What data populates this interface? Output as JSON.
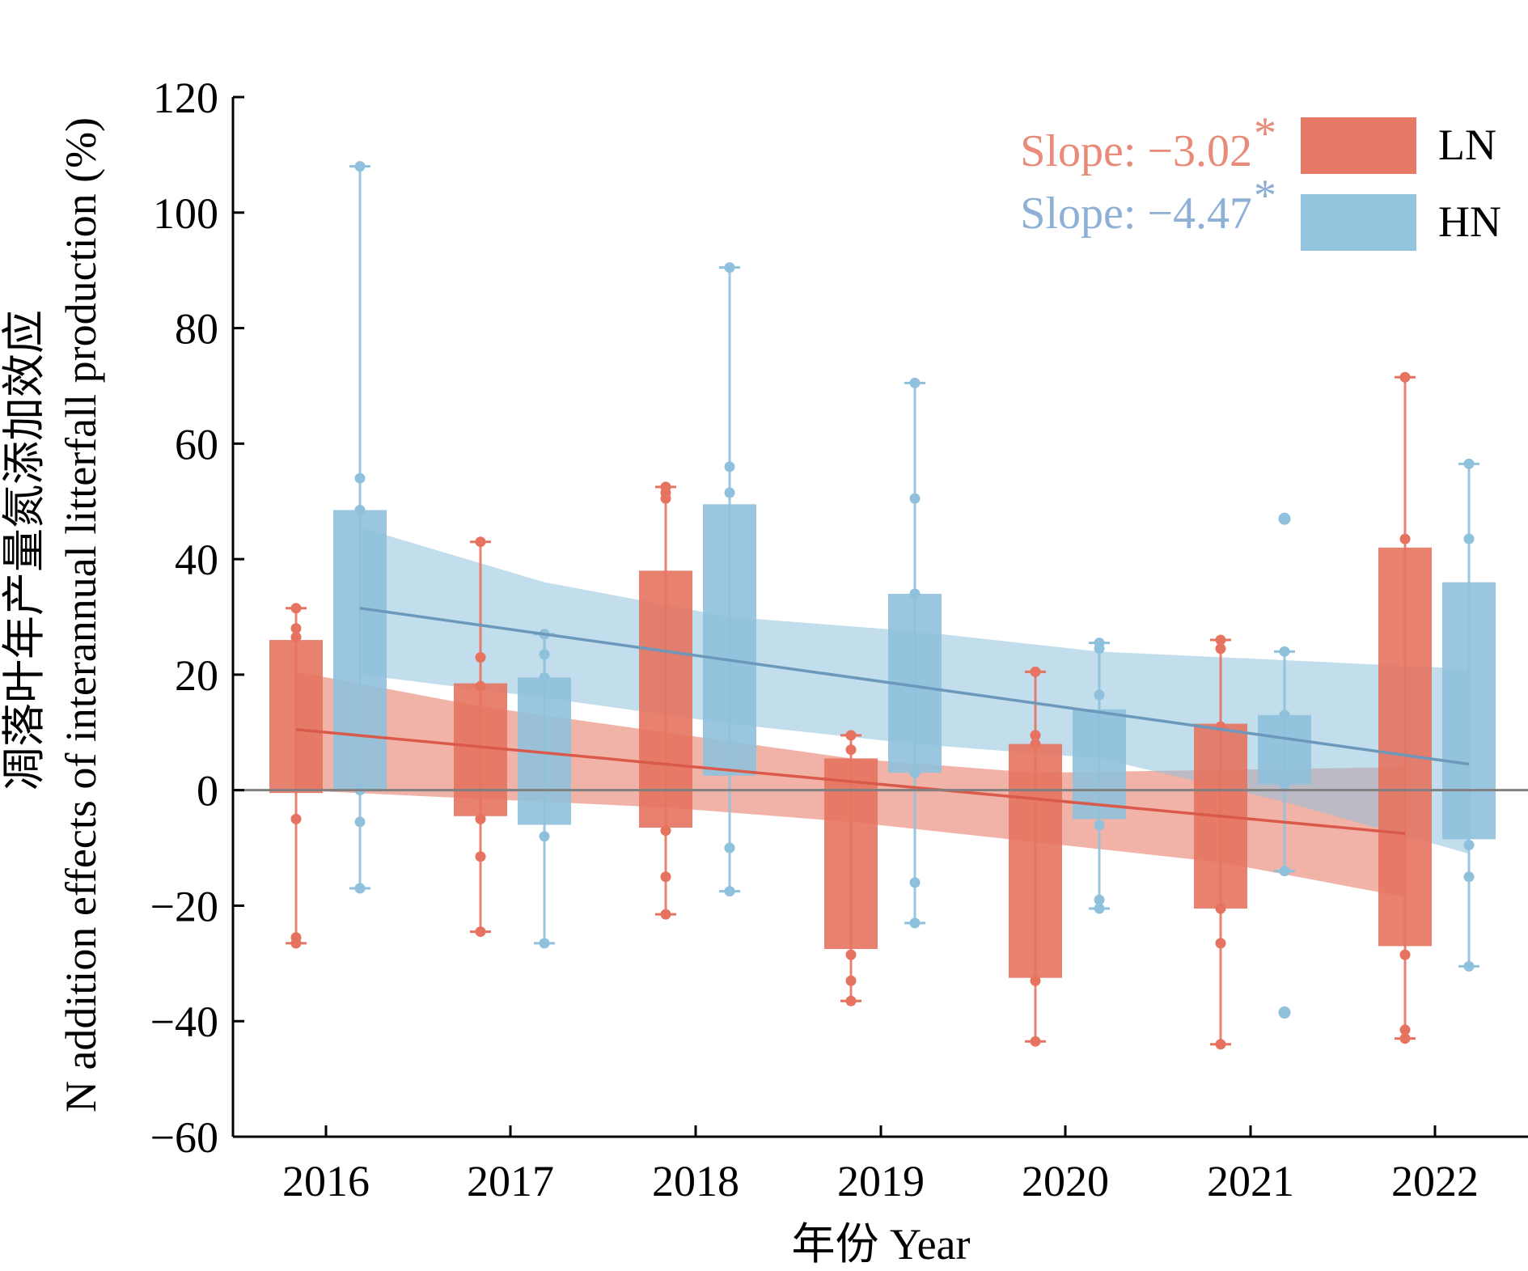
{
  "colors": {
    "LN": "#e5735f",
    "HN": "#8fc1dc",
    "LN_line": "#d9594a",
    "HN_line": "#6b98bb",
    "LN_text": "#e88c79",
    "HN_text": "#8fb0d6",
    "zero_line": "#808080"
  },
  "chart_data": {
    "type": "box",
    "xlabel": "年份 Year",
    "ylabel_cn": "凋落叶年产量氮添加效应",
    "ylabel_en": "N addition effects of interannual litterfall production (%)",
    "ylim": [
      -60,
      120
    ],
    "yticks": [
      -60,
      -40,
      -20,
      0,
      20,
      40,
      60,
      80,
      100,
      120
    ],
    "ytick_labels": [
      "−60",
      "−40",
      "−20",
      "0",
      "20",
      "40",
      "60",
      "80",
      "100",
      "120"
    ],
    "categories": [
      "2016",
      "2017",
      "2018",
      "2019",
      "2020",
      "2021",
      "2022"
    ],
    "legend": {
      "position": "top-right",
      "entries": [
        "LN",
        "HN"
      ]
    },
    "annotations": [
      {
        "series": "LN",
        "text": "Slope: −3.02",
        "sup": "*"
      },
      {
        "series": "HN",
        "text": "Slope: −4.47",
        "sup": "*"
      }
    ],
    "series": [
      {
        "name": "LN",
        "boxes": [
          {
            "q1": -0.5,
            "q3": 26,
            "whisker_low": -26.5,
            "whisker_high": 31.5,
            "points": [
              -26.5,
              -25.5,
              -5,
              26.5,
              28,
              31.5
            ]
          },
          {
            "q1": -4.5,
            "q3": 18.5,
            "whisker_low": -24.5,
            "whisker_high": 43,
            "points": [
              -24.5,
              -11.5,
              -5,
              18,
              23,
              43
            ]
          },
          {
            "q1": -6.5,
            "q3": 38,
            "whisker_low": -21.5,
            "whisker_high": 52.5,
            "points": [
              -21.5,
              -15,
              -7,
              50.5,
              51.5,
              52.5
            ]
          },
          {
            "q1": -27.5,
            "q3": 5.5,
            "whisker_low": -36.5,
            "whisker_high": 9.5,
            "points": [
              -36.5,
              -33,
              -28.5,
              7,
              9.5
            ]
          },
          {
            "q1": -32.5,
            "q3": 8,
            "whisker_low": -43.5,
            "whisker_high": 20.5,
            "points": [
              -43.5,
              -33,
              8,
              9.5,
              20.5
            ]
          },
          {
            "q1": -20.5,
            "q3": 11.5,
            "whisker_low": -44,
            "whisker_high": 26,
            "points": [
              -44,
              -26.5,
              -20.5,
              11,
              24.5,
              26
            ]
          },
          {
            "q1": -27,
            "q3": 42,
            "whisker_low": -43,
            "whisker_high": 71.5,
            "points": [
              -43,
              -41.5,
              -28.5,
              43.5,
              71.5
            ]
          }
        ],
        "trend": {
          "x_start": "2016",
          "x_end": "2022",
          "y_start": 10.5,
          "y_end": -7.5
        },
        "band_upper": [
          20.5,
          14.5,
          10,
          5.5,
          3,
          3.5,
          4
        ],
        "band_lower": [
          0,
          -1.5,
          -3,
          -5.5,
          -9,
          -12.5,
          -18.5
        ]
      },
      {
        "name": "HN",
        "boxes": [
          {
            "q1": 0,
            "q3": 48.5,
            "whisker_low": -17,
            "whisker_high": 108,
            "points": [
              -17,
              -5.5,
              0,
              48.5,
              54,
              108
            ]
          },
          {
            "q1": -6,
            "q3": 19.5,
            "whisker_low": -26.5,
            "whisker_high": 27,
            "points": [
              -26.5,
              -8,
              19.5,
              23.5,
              27
            ]
          },
          {
            "q1": 2.5,
            "q3": 49.5,
            "whisker_low": -17.5,
            "whisker_high": 90.5,
            "points": [
              -17.5,
              -10,
              51.5,
              56,
              90.5
            ]
          },
          {
            "q1": 3,
            "q3": 34,
            "whisker_low": -23,
            "whisker_high": 70.5,
            "points": [
              -23,
              -16,
              3,
              34,
              50.5,
              70.5
            ]
          },
          {
            "q1": -5,
            "q3": 14,
            "whisker_low": -20.5,
            "whisker_high": 25.5,
            "points": [
              -20.5,
              -19,
              -6,
              16.5,
              24.5,
              25.5
            ]
          },
          {
            "q1": 1,
            "q3": 13,
            "whisker_low": -14,
            "whisker_high": 24,
            "points": [
              -14,
              1,
              13,
              24
            ],
            "outliers": [
              47,
              -38.5
            ]
          },
          {
            "q1": -8.5,
            "q3": 36,
            "whisker_low": -30.5,
            "whisker_high": 56.5,
            "points": [
              -30.5,
              -15,
              -9.5,
              43.5,
              56.5
            ]
          }
        ],
        "trend": {
          "x_start": "2016",
          "x_end": "2022",
          "y_start": 31.5,
          "y_end": 4.5
        },
        "band_upper": [
          45.5,
          36,
          30,
          27.5,
          24,
          22.5,
          21
        ],
        "band_lower": [
          20,
          16,
          11.5,
          8,
          5.5,
          -2,
          -11
        ]
      }
    ]
  }
}
